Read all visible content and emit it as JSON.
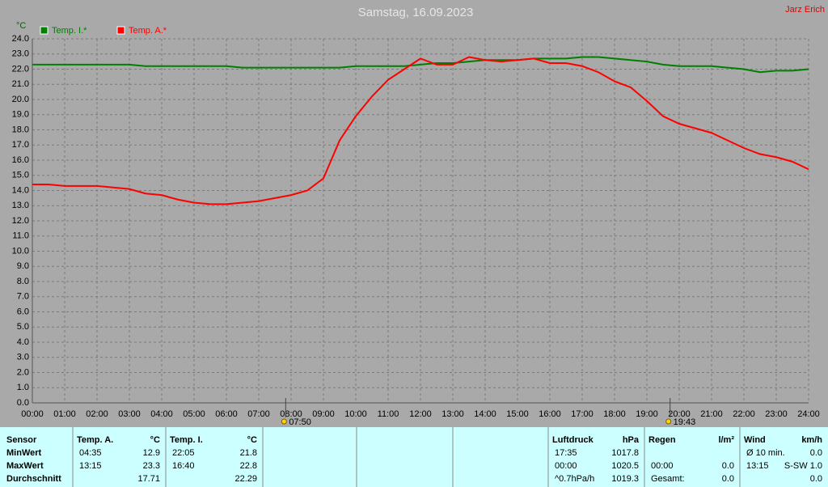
{
  "chart_data": {
    "type": "line",
    "title": "Samstag, 16.09.2023",
    "author": "Jarz Erich",
    "y_label": "°C",
    "x": [
      0,
      0.5,
      1,
      1.5,
      2,
      2.5,
      3,
      3.5,
      4,
      4.5,
      5,
      5.5,
      6,
      6.5,
      7,
      7.5,
      8,
      8.5,
      9,
      9.5,
      10,
      10.5,
      11,
      11.5,
      12,
      12.5,
      13,
      13.5,
      14,
      14.5,
      15,
      15.5,
      16,
      16.5,
      17,
      17.5,
      18,
      18.5,
      19,
      19.5,
      20,
      20.5,
      21,
      21.5,
      22,
      22.5,
      23,
      23.5,
      24
    ],
    "series": [
      {
        "name": "Temp. I.*",
        "color": "#008000",
        "values": [
          22.3,
          22.3,
          22.3,
          22.3,
          22.3,
          22.3,
          22.3,
          22.2,
          22.2,
          22.2,
          22.2,
          22.2,
          22.2,
          22.1,
          22.1,
          22.1,
          22.1,
          22.1,
          22.1,
          22.1,
          22.2,
          22.2,
          22.2,
          22.2,
          22.3,
          22.4,
          22.4,
          22.5,
          22.6,
          22.6,
          22.6,
          22.7,
          22.7,
          22.7,
          22.8,
          22.8,
          22.7,
          22.6,
          22.5,
          22.3,
          22.2,
          22.2,
          22.2,
          22.1,
          22.0,
          21.8,
          21.9,
          21.9,
          22.0
        ]
      },
      {
        "name": "Temp. A.*",
        "color": "#ff0000",
        "values": [
          14.4,
          14.4,
          14.3,
          14.3,
          14.3,
          14.2,
          14.1,
          13.8,
          13.7,
          13.4,
          13.2,
          13.1,
          13.1,
          13.2,
          13.3,
          13.5,
          13.7,
          14.0,
          14.8,
          17.3,
          18.9,
          20.2,
          21.3,
          22.0,
          22.7,
          22.3,
          22.3,
          22.8,
          22.6,
          22.5,
          22.6,
          22.7,
          22.4,
          22.4,
          22.2,
          21.8,
          21.2,
          20.8,
          19.9,
          18.9,
          18.4,
          18.1,
          17.8,
          17.3,
          16.8,
          16.4,
          16.2,
          15.9,
          15.4
        ]
      }
    ],
    "xlim": [
      0,
      24
    ],
    "xticks": [
      {
        "value": 0,
        "label": "00:00"
      },
      {
        "value": 1,
        "label": "01:00"
      },
      {
        "value": 2,
        "label": "02:00"
      },
      {
        "value": 3,
        "label": "03:00"
      },
      {
        "value": 4,
        "label": "04:00"
      },
      {
        "value": 5,
        "label": "05:00"
      },
      {
        "value": 6,
        "label": "06:00"
      },
      {
        "value": 7,
        "label": "07:00"
      },
      {
        "value": 8,
        "label": "08:00"
      },
      {
        "value": 9,
        "label": "09:00"
      },
      {
        "value": 10,
        "label": "10:00"
      },
      {
        "value": 11,
        "label": "11:00"
      },
      {
        "value": 12,
        "label": "12:00"
      },
      {
        "value": 13,
        "label": "13:00"
      },
      {
        "value": 14,
        "label": "14:00"
      },
      {
        "value": 15,
        "label": "15:00"
      },
      {
        "value": 16,
        "label": "16:00"
      },
      {
        "value": 17,
        "label": "17:00"
      },
      {
        "value": 18,
        "label": "18:00"
      },
      {
        "value": 19,
        "label": "19:00"
      },
      {
        "value": 20,
        "label": "20:00"
      },
      {
        "value": 21,
        "label": "21:00"
      },
      {
        "value": 22,
        "label": "22:00"
      },
      {
        "value": 23,
        "label": "23:00"
      },
      {
        "value": 24,
        "label": "24:00"
      }
    ],
    "ylim": [
      0,
      24
    ],
    "yticks": [
      {
        "value": 0,
        "label": "0.0"
      },
      {
        "value": 1,
        "label": "1.0"
      },
      {
        "value": 2,
        "label": "2.0"
      },
      {
        "value": 3,
        "label": "3.0"
      },
      {
        "value": 4,
        "label": "4.0"
      },
      {
        "value": 5,
        "label": "5.0"
      },
      {
        "value": 6,
        "label": "6.0"
      },
      {
        "value": 7,
        "label": "7.0"
      },
      {
        "value": 8,
        "label": "8.0"
      },
      {
        "value": 9,
        "label": "9.0"
      },
      {
        "value": 10,
        "label": "10.0"
      },
      {
        "value": 11,
        "label": "11.0"
      },
      {
        "value": 12,
        "label": "12.0"
      },
      {
        "value": 13,
        "label": "13.0"
      },
      {
        "value": 14,
        "label": "14.0"
      },
      {
        "value": 15,
        "label": "15.0"
      },
      {
        "value": 16,
        "label": "16.0"
      },
      {
        "value": 17,
        "label": "17.0"
      },
      {
        "value": 18,
        "label": "18.0"
      },
      {
        "value": 19,
        "label": "19.0"
      },
      {
        "value": 20,
        "label": "20.0"
      },
      {
        "value": 21,
        "label": "21.0"
      },
      {
        "value": 22,
        "label": "22.0"
      },
      {
        "value": 23,
        "label": "23.0"
      },
      {
        "value": 24,
        "label": "24.0"
      }
    ],
    "grid": true,
    "annotations": [
      {
        "x": 7.833,
        "text": "07:50"
      },
      {
        "x": 19.717,
        "text": "19:43"
      }
    ]
  },
  "stats_table": {
    "row_header": "Sensor",
    "row_labels": [
      "MinWert",
      "MaxWert",
      "Durchschnitt"
    ],
    "columns": [
      {
        "header": "Temp. A.",
        "unit": "°C",
        "rows": [
          [
            "04:35",
            "12.9"
          ],
          [
            "13:15",
            "23.3"
          ],
          [
            null,
            "17.71"
          ]
        ]
      },
      {
        "header": "Temp. I.",
        "unit": "°C",
        "rows": [
          [
            "22:05",
            "21.8"
          ],
          [
            "16:40",
            "22.8"
          ],
          [
            null,
            "22.29"
          ]
        ]
      },
      {
        "header": "Luftdruck",
        "unit": "hPa",
        "rows": [
          [
            "17:35",
            "1017.8"
          ],
          [
            "00:00",
            "1020.5"
          ],
          [
            "^0.7hPa/h",
            "1019.3"
          ]
        ]
      },
      {
        "header": "Regen",
        "unit": "l/m²",
        "rows": [
          [
            null,
            null
          ],
          [
            "00:00",
            "0.0"
          ],
          [
            "Gesamt:",
            "0.0"
          ]
        ]
      },
      {
        "header": "Wind",
        "unit": "km/h",
        "rows": [
          [
            "Ø 10 min.",
            "0.0"
          ],
          [
            "13:15",
            "S-SW 1.0"
          ],
          [
            null,
            "0.0"
          ]
        ]
      }
    ]
  }
}
